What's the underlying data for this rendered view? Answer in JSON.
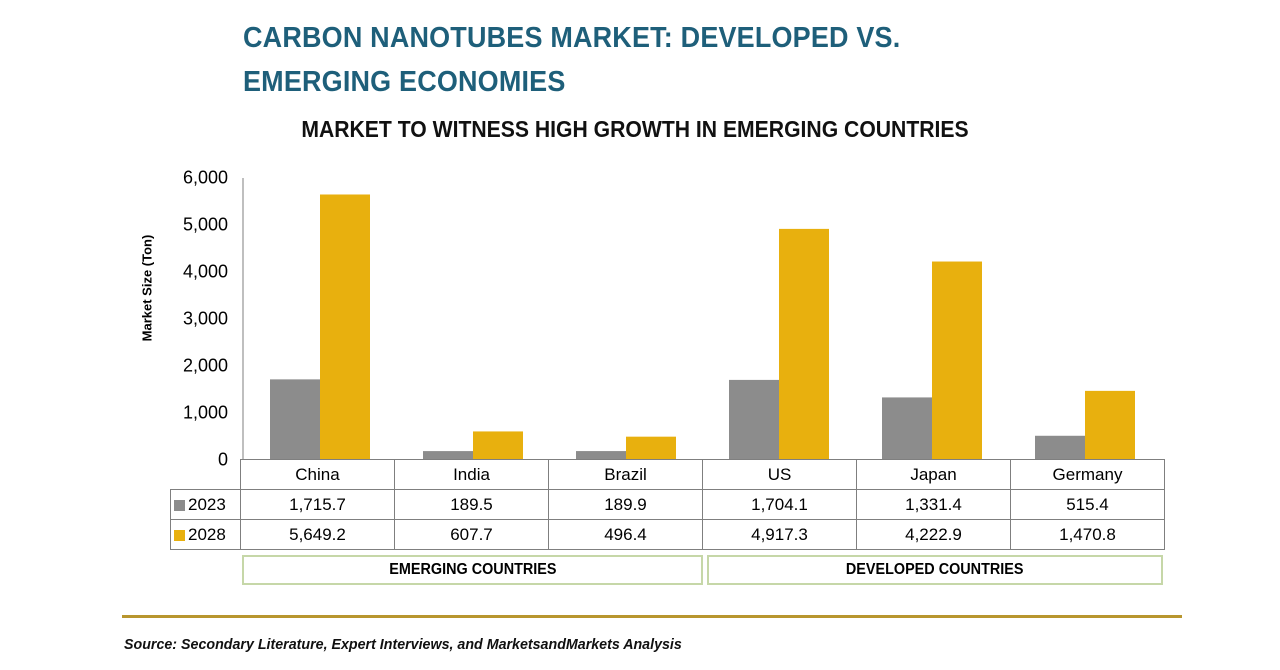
{
  "header": {
    "title_line1": "CARBON NANOTUBES MARKET: DEVELOPED VS.",
    "title_line2": "EMERGING ECONOMIES"
  },
  "chart_data": {
    "type": "bar",
    "title": "MARKET TO WITNESS HIGH GROWTH IN EMERGING COUNTRIES",
    "ylabel": "Market Size (Ton)",
    "xlabel": "",
    "ylim": [
      0,
      6000
    ],
    "yticks": [
      "0",
      "1,000",
      "2,000",
      "3,000",
      "4,000",
      "5,000",
      "6,000"
    ],
    "categories": [
      "China",
      "India",
      "Brazil",
      "US",
      "Japan",
      "Germany"
    ],
    "series": [
      {
        "name": "2023",
        "color": "#8c8c8c",
        "values": [
          1715.7,
          189.5,
          189.9,
          1704.1,
          1331.4,
          515.4
        ],
        "labels": [
          "1,715.7",
          "189.5",
          "189.9",
          "1,704.1",
          "1,331.4",
          "515.4"
        ]
      },
      {
        "name": "2028",
        "color": "#e8b00e",
        "values": [
          5649.2,
          607.7,
          496.4,
          4917.3,
          4222.9,
          1470.8
        ],
        "labels": [
          "5,649.2",
          "607.7",
          "496.4",
          "4,917.3",
          "4,222.9",
          "1,470.8"
        ]
      }
    ],
    "groups": [
      {
        "label": "EMERGING COUNTRIES",
        "categories": [
          "China",
          "India",
          "Brazil"
        ]
      },
      {
        "label": "DEVELOPED COUNTRIES",
        "categories": [
          "US",
          "Japan",
          "Germany"
        ]
      }
    ],
    "legend": "data-table-left"
  },
  "footer": {
    "source": "Source: Secondary Literature, Expert Interviews, and MarketsandMarkets Analysis"
  }
}
